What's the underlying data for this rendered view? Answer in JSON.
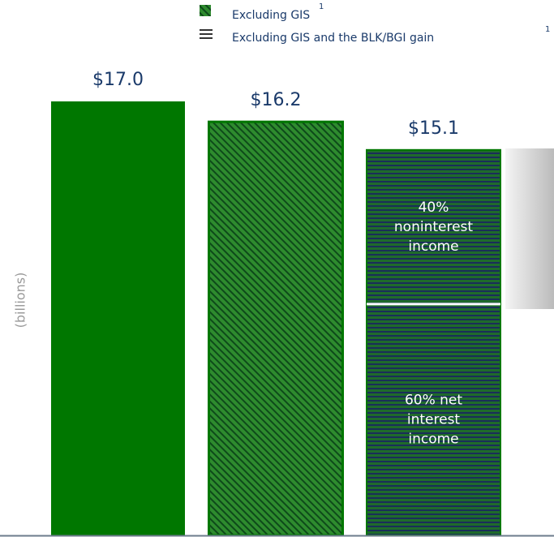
{
  "chart_data": {
    "type": "bar",
    "y_label": "(billions)",
    "legend": [
      {
        "name": "Excluding GIS",
        "note": "1",
        "pattern": "diagonal"
      },
      {
        "name": "Excluding GIS and the BLK/BGI gain",
        "note": "1",
        "pattern": "horizontal"
      }
    ],
    "values": [
      17.0,
      16.2,
      15.1
    ],
    "value_labels": [
      "$17.0",
      "$16.2",
      "$15.1"
    ],
    "patterns": [
      "solid",
      "diagonal",
      "horizontal"
    ],
    "color": "#007700",
    "ylim": [
      0,
      20
    ],
    "breakdown": {
      "values": [
        60,
        40
      ],
      "labels": [
        [
          "60% net",
          "interest",
          "income"
        ],
        [
          "40%",
          "noninterest",
          "income"
        ]
      ]
    }
  }
}
